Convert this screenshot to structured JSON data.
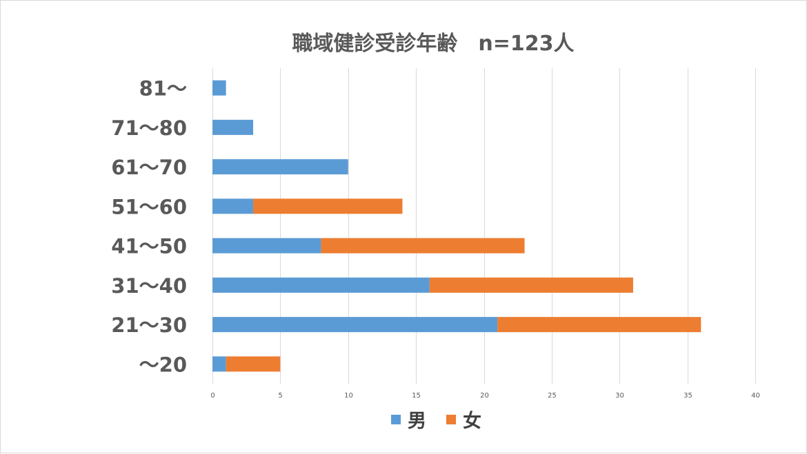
{
  "chart_data": {
    "type": "bar",
    "orientation": "horizontal",
    "stacked": true,
    "title": "職域健診受診年齢　n=123人",
    "categories": [
      "〜20",
      "21〜30",
      "31〜40",
      "41〜50",
      "51〜60",
      "61〜70",
      "71〜80",
      "81〜"
    ],
    "series": [
      {
        "name": "男",
        "color": "#5b9bd5",
        "values": [
          1,
          21,
          16,
          8,
          3,
          10,
          3,
          1
        ]
      },
      {
        "name": "女",
        "color": "#ed7d31",
        "values": [
          4,
          15,
          15,
          15,
          11,
          0,
          0,
          0
        ]
      }
    ],
    "xlim": [
      0,
      40
    ],
    "xticks": [
      0,
      5,
      10,
      15,
      20,
      25,
      30,
      35,
      40
    ],
    "xlabel": "",
    "ylabel": "",
    "grid": true,
    "legend_position": "bottom"
  }
}
